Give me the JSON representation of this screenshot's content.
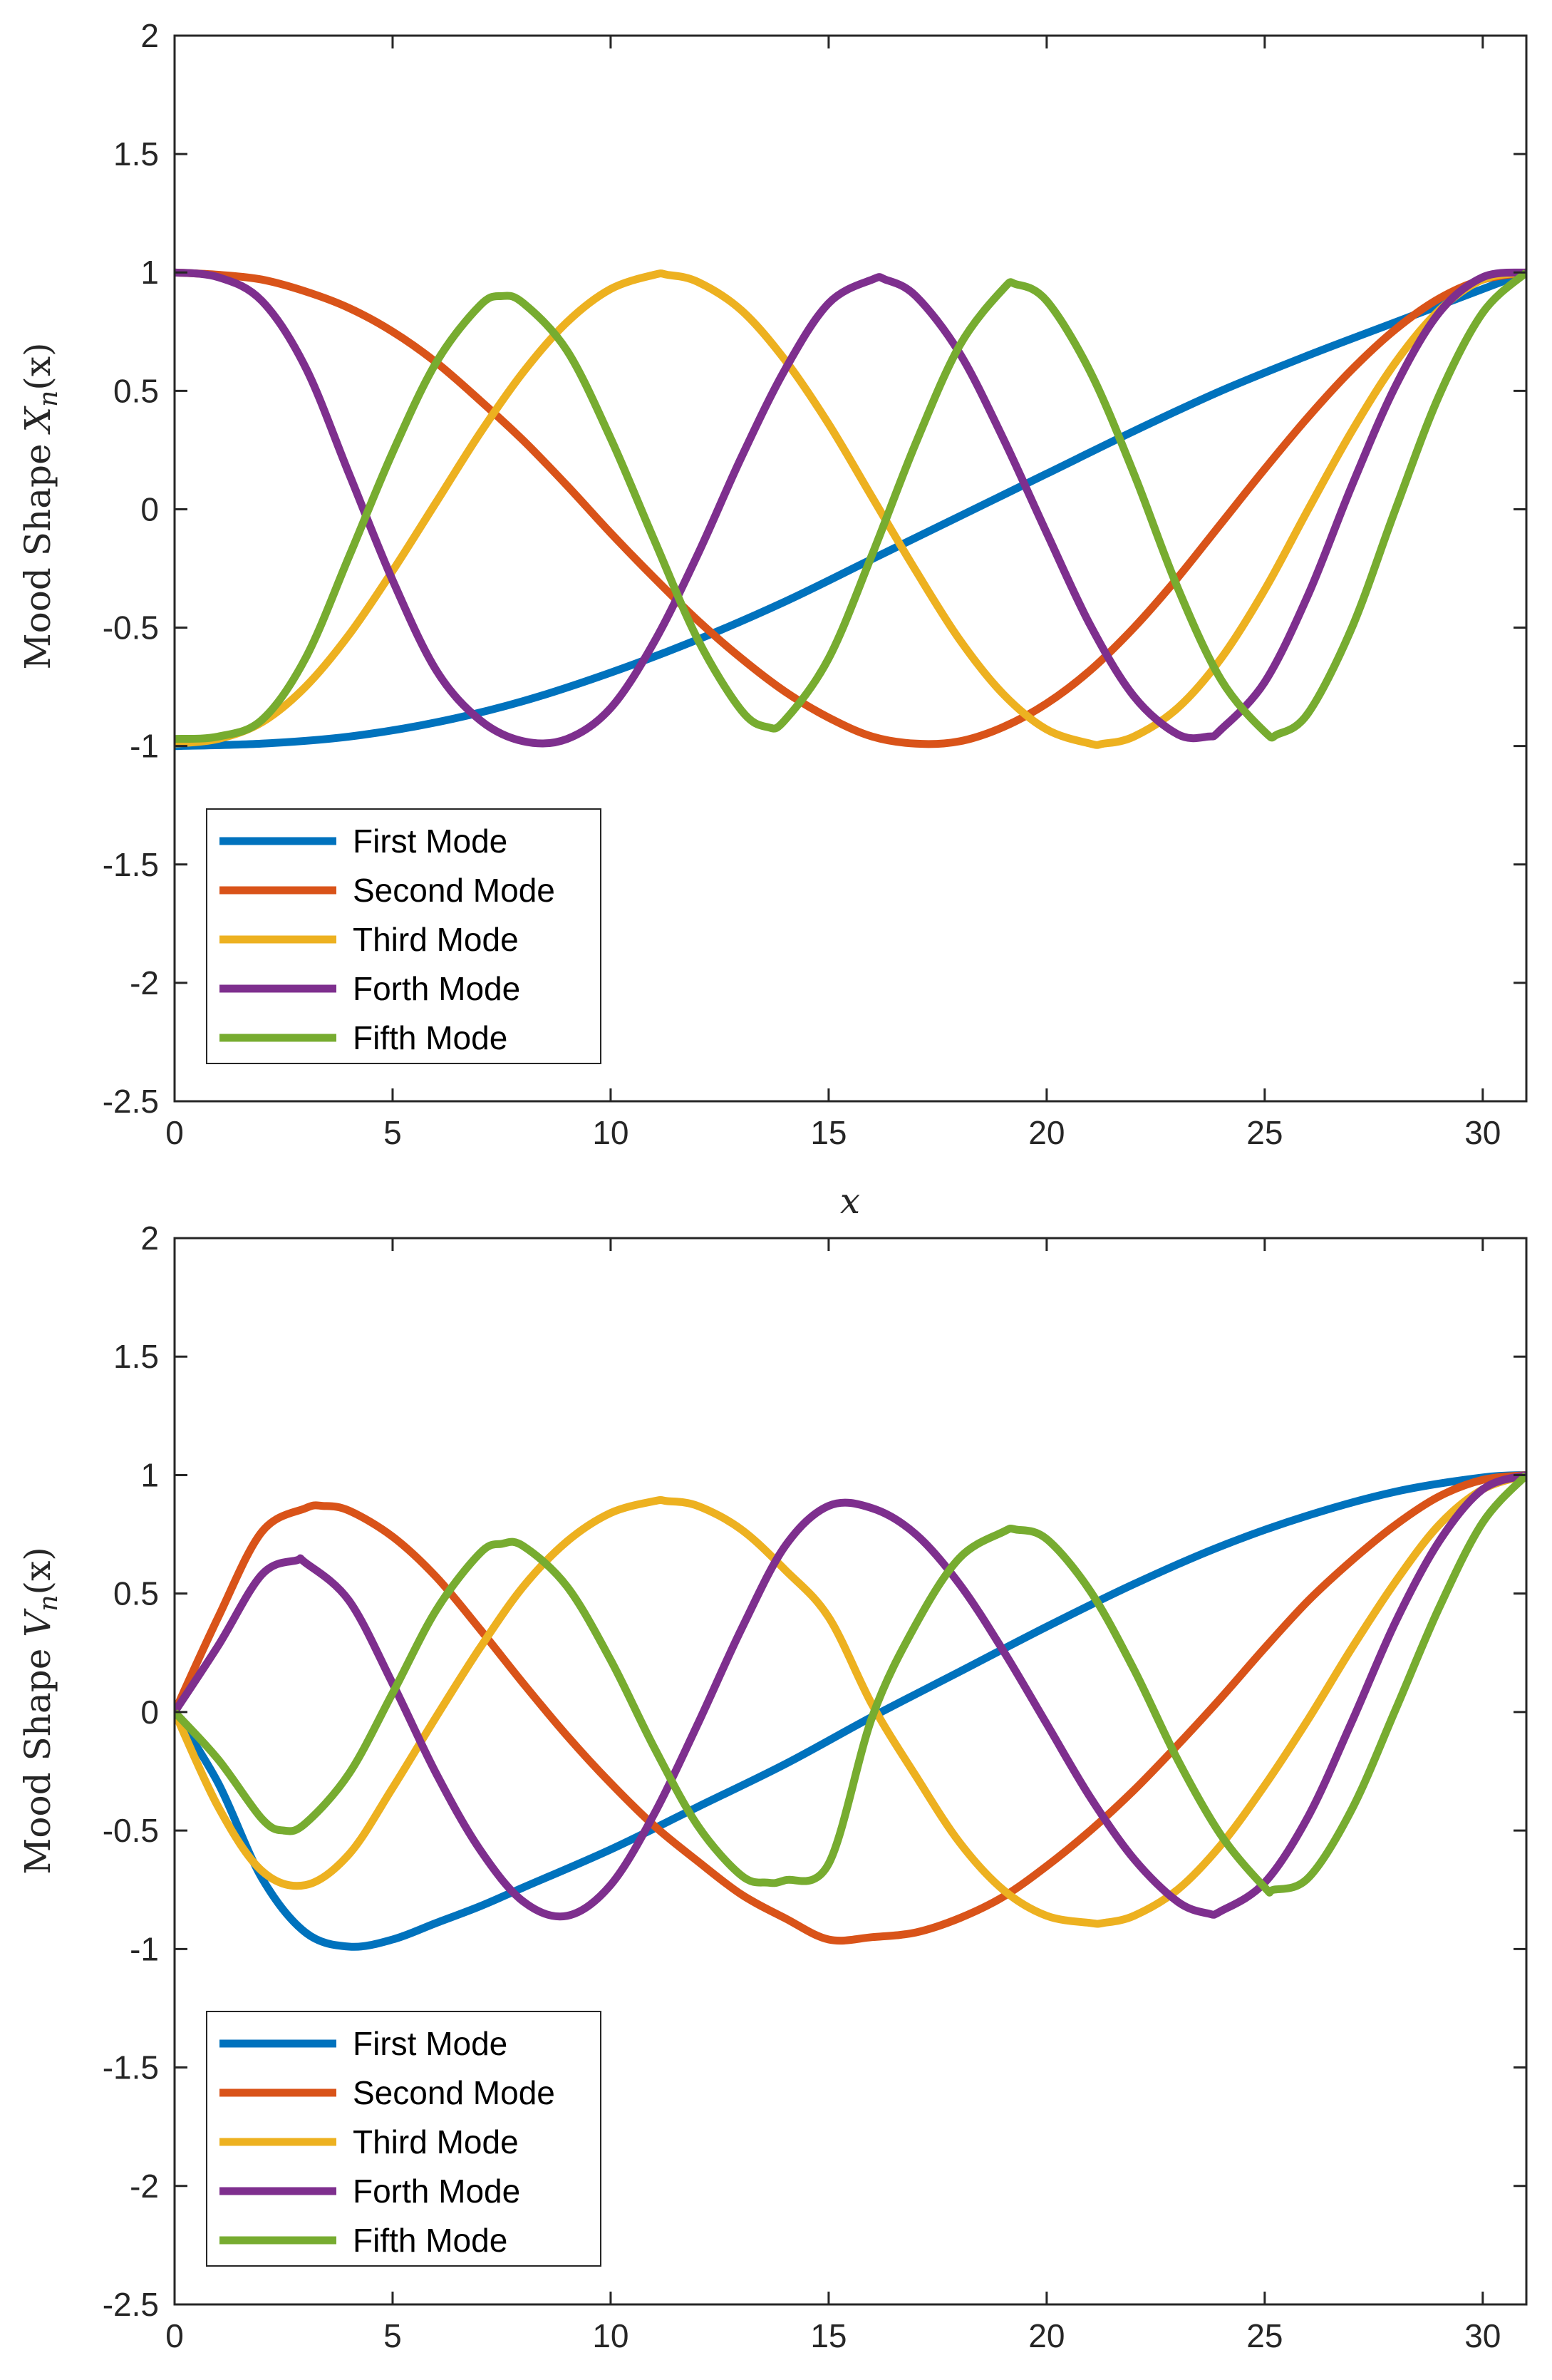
{
  "chart_data": [
    {
      "type": "line",
      "title": "",
      "xlabel": "x",
      "ylabel_prefix": "Mood Shape ",
      "ylabel_math_var": "X",
      "ylabel_math_sub": "n",
      "ylabel_math_arg": "(x)",
      "xlim": [
        0,
        31
      ],
      "ylim": [
        -2.5,
        2
      ],
      "xticks": [
        0,
        5,
        10,
        15,
        20,
        25,
        30
      ],
      "yticks": [
        -2.5,
        -2,
        -1.5,
        -1,
        -0.5,
        0,
        0.5,
        1,
        1.5,
        2
      ],
      "xtick_labels": [
        "0",
        "5",
        "10",
        "15",
        "20",
        "25",
        "30"
      ],
      "ytick_labels": [
        "-2.5",
        "-2",
        "-1.5",
        "-1",
        "-0.5",
        "0",
        "0.5",
        "1",
        "1.5",
        "2"
      ],
      "legend_position": "bottom-left",
      "grid": false,
      "series": [
        {
          "name": "First Mode",
          "color": "#0072BD",
          "x": [
            0,
            2,
            4,
            6,
            8,
            10,
            12,
            14,
            16,
            18,
            20,
            22,
            24,
            26,
            28,
            30,
            31
          ],
          "y": [
            -1,
            -0.99,
            -0.96,
            -0.9,
            -0.81,
            -0.69,
            -0.55,
            -0.39,
            -0.21,
            -0.03,
            0.15,
            0.33,
            0.5,
            0.65,
            0.79,
            0.93,
            1.0
          ]
        },
        {
          "name": "Second Mode",
          "color": "#D95319",
          "x": [
            0,
            1,
            2,
            3,
            4,
            5,
            6,
            7,
            8,
            9,
            10,
            11,
            12,
            13,
            14,
            15,
            16,
            17,
            18,
            19,
            20,
            21,
            22,
            23,
            24,
            25,
            26,
            27,
            28,
            29,
            30,
            31
          ],
          "y": [
            1,
            0.99,
            0.97,
            0.92,
            0.85,
            0.75,
            0.62,
            0.46,
            0.29,
            0.1,
            -0.1,
            -0.29,
            -0.47,
            -0.63,
            -0.77,
            -0.88,
            -0.96,
            -0.99,
            -0.98,
            -0.92,
            -0.82,
            -0.68,
            -0.5,
            -0.29,
            -0.06,
            0.17,
            0.39,
            0.59,
            0.76,
            0.89,
            0.97,
            1.0
          ]
        },
        {
          "name": "Third Mode",
          "color": "#EDB120",
          "x": [
            0,
            1,
            2,
            3,
            4,
            5,
            6,
            7,
            8,
            9,
            10,
            11,
            11.3,
            12,
            13,
            14,
            15,
            16,
            17,
            18,
            19,
            20,
            21,
            21.3,
            22,
            23,
            24,
            25,
            26,
            27,
            28,
            29,
            30,
            31
          ],
          "y": [
            -0.99,
            -0.97,
            -0.9,
            -0.75,
            -0.53,
            -0.26,
            0.03,
            0.32,
            0.58,
            0.79,
            0.93,
            0.99,
            0.99,
            0.96,
            0.84,
            0.63,
            0.36,
            0.05,
            -0.26,
            -0.55,
            -0.78,
            -0.93,
            -0.99,
            -0.99,
            -0.96,
            -0.84,
            -0.63,
            -0.34,
            0.0,
            0.33,
            0.62,
            0.84,
            0.97,
            1.0
          ]
        },
        {
          "name": "Forth Mode",
          "color": "#7E2F8E",
          "x": [
            0,
            1,
            2,
            3,
            4,
            5,
            6,
            7,
            8,
            9,
            10,
            11,
            12,
            13,
            14,
            15,
            16,
            16.3,
            17,
            18,
            19,
            20,
            21,
            22,
            23,
            23.7,
            24,
            25,
            26,
            27,
            28,
            29,
            30,
            31
          ],
          "y": [
            1,
            0.98,
            0.88,
            0.6,
            0.15,
            -0.3,
            -0.68,
            -0.89,
            -0.98,
            -0.97,
            -0.84,
            -0.56,
            -0.19,
            0.22,
            0.59,
            0.87,
            0.97,
            0.97,
            0.9,
            0.66,
            0.3,
            -0.1,
            -0.49,
            -0.79,
            -0.95,
            -0.96,
            -0.93,
            -0.73,
            -0.36,
            0.1,
            0.52,
            0.83,
            0.98,
            1.0
          ]
        },
        {
          "name": "Fifth Mode",
          "color": "#77AC30",
          "x": [
            0,
            1,
            2,
            3,
            4,
            5,
            6,
            7,
            7.5,
            8,
            9,
            10,
            11,
            12,
            13,
            13.6,
            14,
            15,
            16,
            17,
            18,
            19,
            19.3,
            20,
            21,
            22,
            23,
            24,
            25,
            25.3,
            26,
            27,
            28,
            29,
            30,
            31
          ],
          "y": [
            -0.97,
            -0.96,
            -0.89,
            -0.63,
            -0.2,
            0.24,
            0.62,
            0.86,
            0.9,
            0.87,
            0.67,
            0.3,
            -0.13,
            -0.55,
            -0.85,
            -0.92,
            -0.89,
            -0.63,
            -0.19,
            0.28,
            0.69,
            0.93,
            0.95,
            0.88,
            0.58,
            0.15,
            -0.33,
            -0.72,
            -0.94,
            -0.95,
            -0.86,
            -0.5,
            0.0,
            0.48,
            0.83,
            1.0
          ]
        }
      ]
    },
    {
      "type": "line",
      "title": "",
      "xlabel": "",
      "ylabel_prefix": "Mood Shape ",
      "ylabel_math_var": "V",
      "ylabel_math_sub": "n",
      "ylabel_math_arg": "(x)",
      "xlim": [
        0,
        31
      ],
      "ylim": [
        -2.5,
        2
      ],
      "xticks": [
        0,
        5,
        10,
        15,
        20,
        25,
        30
      ],
      "yticks": [
        -2.5,
        -2,
        -1.5,
        -1,
        -0.5,
        0,
        0.5,
        1,
        1.5,
        2
      ],
      "xtick_labels": [
        "0",
        "5",
        "10",
        "15",
        "20",
        "25",
        "30"
      ],
      "ytick_labels": [
        "-2.5",
        "-2",
        "-1.5",
        "-1",
        "-0.5",
        "0",
        "0.5",
        "1",
        "1.5",
        "2"
      ],
      "legend_position": "bottom-left",
      "grid": false,
      "series": [
        {
          "name": "First Mode",
          "color": "#0072BD",
          "x": [
            0,
            1,
            2,
            3,
            4,
            5,
            6,
            7,
            8,
            10,
            12,
            14,
            16,
            18,
            20,
            22,
            24,
            26,
            28,
            30,
            31
          ],
          "y": [
            0,
            -0.3,
            -0.7,
            -0.93,
            -0.99,
            -0.96,
            -0.89,
            -0.82,
            -0.74,
            -0.58,
            -0.4,
            -0.22,
            -0.02,
            0.17,
            0.36,
            0.54,
            0.7,
            0.83,
            0.93,
            0.99,
            1.0
          ]
        },
        {
          "name": "Second Mode",
          "color": "#D95319",
          "x": [
            0,
            1,
            2,
            3,
            3.4,
            4,
            5,
            6,
            7,
            8,
            9,
            10,
            11,
            12,
            13,
            14,
            15,
            16,
            17,
            18,
            19,
            20,
            21,
            22,
            23,
            24,
            25,
            26,
            27,
            28,
            29,
            30,
            31
          ],
          "y": [
            0,
            0.4,
            0.76,
            0.86,
            0.87,
            0.85,
            0.74,
            0.57,
            0.35,
            0.12,
            -0.1,
            -0.3,
            -0.48,
            -0.63,
            -0.77,
            -0.87,
            -0.96,
            -0.95,
            -0.93,
            -0.87,
            -0.78,
            -0.65,
            -0.5,
            -0.33,
            -0.14,
            0.06,
            0.27,
            0.47,
            0.64,
            0.79,
            0.91,
            0.98,
            1.0
          ]
        },
        {
          "name": "Third Mode",
          "color": "#EDB120",
          "x": [
            0,
            1,
            2,
            3,
            4,
            5,
            6,
            7,
            8,
            9,
            10,
            11,
            11.3,
            12,
            13,
            14,
            15,
            16,
            17,
            18,
            19,
            20,
            21,
            21.3,
            22,
            23,
            24,
            25,
            26,
            27,
            28,
            29,
            30,
            31
          ],
          "y": [
            0,
            -0.4,
            -0.67,
            -0.73,
            -0.6,
            -0.32,
            -0.02,
            0.27,
            0.53,
            0.72,
            0.84,
            0.89,
            0.89,
            0.87,
            0.77,
            0.6,
            0.4,
            0.03,
            -0.27,
            -0.55,
            -0.75,
            -0.86,
            -0.89,
            -0.89,
            -0.86,
            -0.75,
            -0.56,
            -0.31,
            -0.03,
            0.27,
            0.55,
            0.79,
            0.94,
            1.0
          ]
        },
        {
          "name": "Forth Mode",
          "color": "#7E2F8E",
          "x": [
            0,
            1,
            2,
            2.8,
            3,
            4,
            5,
            6,
            7,
            8,
            9,
            10,
            11,
            12,
            13,
            14,
            15,
            16,
            17,
            18,
            19,
            20,
            21,
            22,
            23,
            23.7,
            24,
            25,
            26,
            27,
            28,
            29,
            30,
            31
          ],
          "y": [
            0,
            0.28,
            0.58,
            0.64,
            0.63,
            0.47,
            0.12,
            -0.26,
            -0.58,
            -0.8,
            -0.86,
            -0.73,
            -0.43,
            -0.05,
            0.35,
            0.7,
            0.87,
            0.86,
            0.75,
            0.54,
            0.26,
            -0.05,
            -0.36,
            -0.62,
            -0.8,
            -0.85,
            -0.84,
            -0.72,
            -0.44,
            -0.04,
            0.38,
            0.72,
            0.94,
            1.0
          ]
        },
        {
          "name": "Fifth Mode",
          "color": "#77AC30",
          "x": [
            0,
            1,
            2,
            2.5,
            3,
            4,
            5,
            6,
            7,
            7.5,
            8,
            9,
            10,
            11,
            12,
            13,
            13.6,
            14,
            15,
            16,
            17,
            18,
            19,
            19.3,
            20,
            21,
            22,
            23,
            24,
            25,
            25.2,
            26,
            27,
            28,
            29,
            30,
            31
          ],
          "y": [
            0,
            -0.2,
            -0.45,
            -0.5,
            -0.47,
            -0.26,
            0.08,
            0.43,
            0.67,
            0.71,
            0.7,
            0.53,
            0.22,
            -0.15,
            -0.48,
            -0.69,
            -0.72,
            -0.71,
            -0.64,
            -0.02,
            0.37,
            0.65,
            0.76,
            0.77,
            0.73,
            0.51,
            0.18,
            -0.2,
            -0.52,
            -0.74,
            -0.75,
            -0.7,
            -0.41,
            0.01,
            0.44,
            0.8,
            1.0
          ]
        }
      ]
    }
  ]
}
